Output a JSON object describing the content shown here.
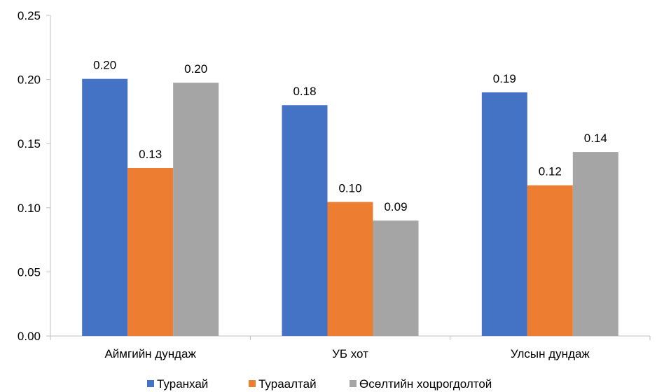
{
  "chart_data": {
    "type": "bar",
    "title": "",
    "xlabel": "",
    "ylabel": "",
    "ylim": [
      0,
      0.25
    ],
    "yticks": [
      "0.00",
      "0.05",
      "0.10",
      "0.15",
      "0.20",
      "0.25"
    ],
    "grid": false,
    "legend_position": "bottom",
    "categories": [
      "Аймгийн дундаж",
      "УБ хот",
      "Улсын дундаж"
    ],
    "series": [
      {
        "name": "Туранхай",
        "color": "#4472C4",
        "values": [
          0.2005,
          0.18,
          0.19
        ],
        "labels": [
          "0.20",
          "0.18",
          "0.19"
        ]
      },
      {
        "name": "Тураалтай",
        "color": "#ED7D31",
        "values": [
          0.131,
          0.1045,
          0.1175
        ],
        "labels": [
          "0.13",
          "0.10",
          "0.12"
        ]
      },
      {
        "name": "Өсөлтийн хоцрогдолтой",
        "color": "#A5A5A5",
        "values": [
          0.1975,
          0.09,
          0.1435
        ],
        "labels": [
          "0.20",
          "0.09",
          "0.14"
        ]
      }
    ]
  }
}
